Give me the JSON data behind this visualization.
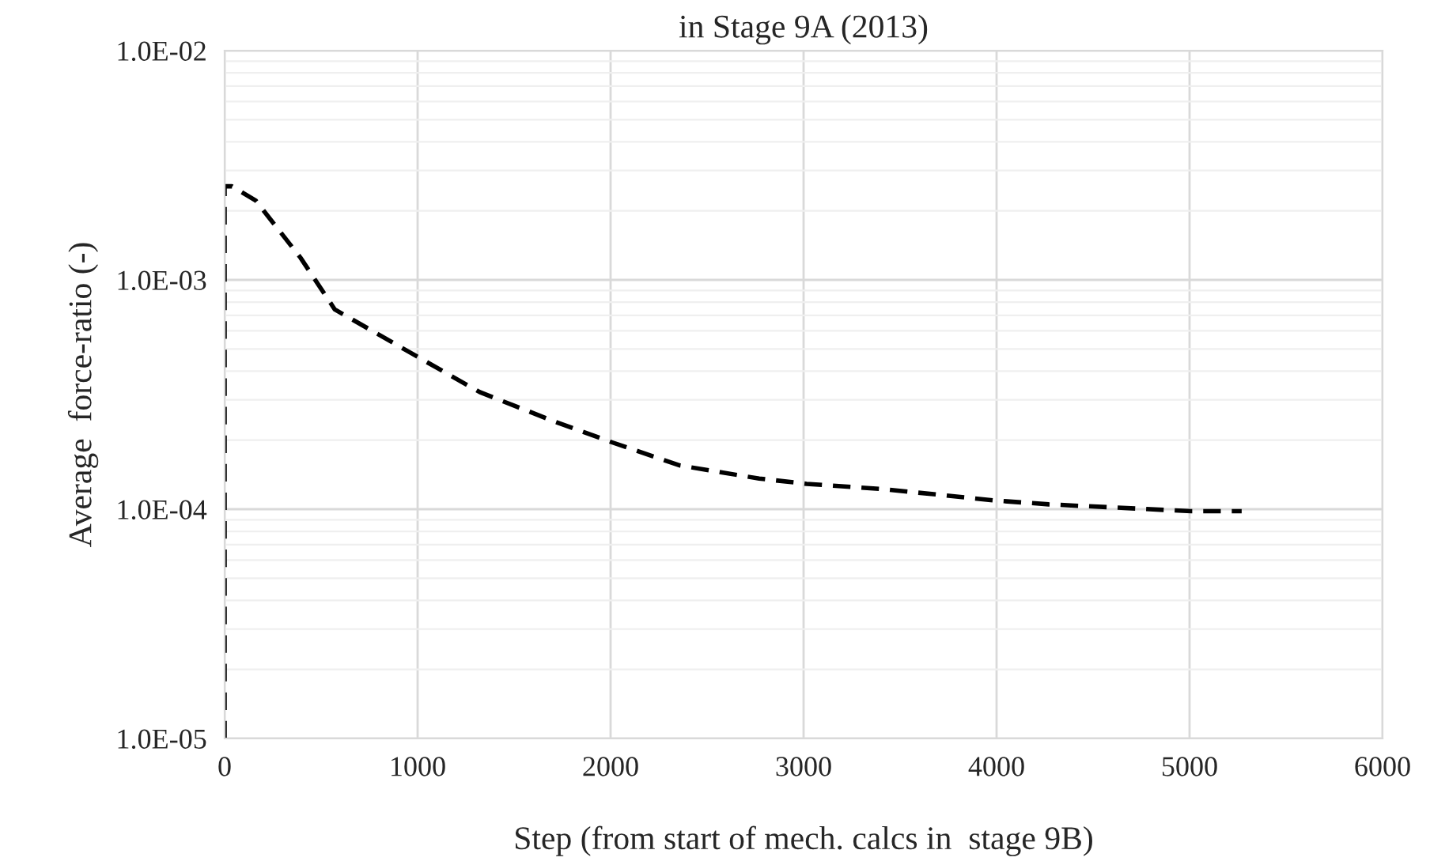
{
  "chart_data": {
    "type": "line",
    "title": "in Stage 9A (2013)",
    "xlabel": "Step (from start of mech. calcs in  stage 9B)",
    "ylabel": "Average  force-ratio (-)",
    "x": [
      0,
      0,
      38,
      161,
      393,
      571,
      994,
      1322,
      1705,
      2005,
      2361,
      2770,
      3016,
      3426,
      4000,
      4270,
      5008,
      5270
    ],
    "series": [
      {
        "color": "#000000",
        "values": [
          1e-05,
          0.00256,
          0.00256,
          0.00222,
          0.00125,
          0.000743,
          0.000465,
          0.000324,
          0.000242,
          0.000196,
          0.000155,
          0.000136,
          0.000129,
          0.000122,
          0.000109,
          0.000105,
          9.8e-05,
          9.8e-05
        ]
      }
    ],
    "log": "y",
    "xlim": [
      0,
      6000
    ],
    "xticks": [
      0,
      1000,
      2000,
      3000,
      4000,
      5000,
      6000
    ],
    "ylim": [
      1e-05,
      0.01
    ],
    "yticks": [
      {
        "value": 1e-05,
        "label": "1.0E-05"
      },
      {
        "value": 0.0001,
        "label": "1.0E-04"
      },
      {
        "value": 0.001,
        "label": "1.0E-03"
      },
      {
        "value": 0.01,
        "label": "1.0E-02"
      }
    ],
    "grid": true,
    "line_style": "dashed",
    "marker": "none"
  }
}
